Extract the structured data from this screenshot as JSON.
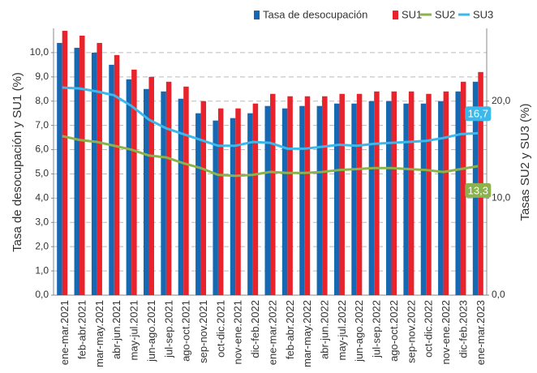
{
  "chart_data": {
    "type": "bar_line",
    "categories": [
      "ene-mar.2021",
      "feb-abr.2021",
      "mar-may.2021",
      "abr-jun.2021",
      "may-jul.2021",
      "jun-ago.2021",
      "jul-sep.2021",
      "ago-oct.2021",
      "sep-nov.2021",
      "oct-dic.2021",
      "nov-ene.2021",
      "dic-feb.2022",
      "ene-mar.2022",
      "feb-abr.2022",
      "mar-may.2022",
      "abr-jun.2022",
      "may-jul.2022",
      "jun-ago.2022",
      "jul-sep.2022",
      "ago-oct.2022",
      "sep-nov.2022",
      "oct-dic.2022",
      "nov-ene.2022",
      "dic-feb.2023",
      "ene-mar.2023"
    ],
    "series": [
      {
        "name": "Tasa de desocupación",
        "color": "#1668b3",
        "kind": "bar",
        "values": [
          10.4,
          10.2,
          10.0,
          9.5,
          8.9,
          8.5,
          8.4,
          8.1,
          7.5,
          7.2,
          7.3,
          7.5,
          7.8,
          7.7,
          7.8,
          7.8,
          7.9,
          7.9,
          8.0,
          8.0,
          7.9,
          7.9,
          8.0,
          8.4,
          8.8
        ]
      },
      {
        "name": "SU1",
        "color": "#e8232b",
        "kind": "bar",
        "values": [
          10.9,
          10.7,
          10.4,
          9.9,
          9.3,
          9.0,
          8.8,
          8.6,
          8.0,
          7.7,
          7.7,
          7.9,
          8.3,
          8.2,
          8.2,
          8.2,
          8.3,
          8.3,
          8.4,
          8.4,
          8.4,
          8.3,
          8.4,
          8.8,
          9.2
        ]
      },
      {
        "name": "SU2",
        "color": "#8bb24c",
        "kind": "line",
        "axis": "y2",
        "values": [
          16.4,
          16.0,
          15.8,
          15.4,
          15.0,
          14.4,
          14.2,
          13.6,
          13.1,
          12.4,
          12.3,
          12.4,
          12.7,
          12.6,
          12.6,
          12.7,
          12.9,
          13.0,
          13.1,
          13.1,
          13.0,
          12.9,
          12.7,
          13.0,
          13.3
        ],
        "value_labels": [
          null,
          null,
          null,
          null,
          null,
          null,
          null,
          null,
          null,
          null,
          null,
          null,
          null,
          null,
          null,
          null,
          null,
          null,
          null,
          null,
          null,
          null,
          null,
          null,
          "13,3"
        ]
      },
      {
        "name": "SU3",
        "color": "#3db8ea",
        "kind": "line",
        "axis": "y2",
        "values": [
          21.4,
          21.3,
          21.0,
          20.6,
          19.5,
          18.1,
          17.2,
          16.6,
          16.0,
          15.4,
          15.4,
          15.8,
          15.7,
          15.1,
          15.1,
          15.3,
          15.5,
          15.4,
          15.6,
          15.7,
          15.8,
          15.9,
          16.2,
          16.6,
          16.7
        ],
        "value_labels": [
          null,
          null,
          null,
          null,
          null,
          null,
          null,
          null,
          null,
          null,
          null,
          null,
          null,
          null,
          null,
          null,
          null,
          null,
          null,
          null,
          null,
          null,
          null,
          null,
          "16,7"
        ]
      }
    ],
    "ylabel": "Tasa de desocupación y SU1 (%)",
    "y2label": "Tasas SU2 y SU3 (%)",
    "ylim": [
      0,
      11
    ],
    "yticks": [
      {
        "value": 0,
        "label": "0,0"
      },
      {
        "value": 1,
        "label": "1,0"
      },
      {
        "value": 2,
        "label": "2,0"
      },
      {
        "value": 3,
        "label": "3,0"
      },
      {
        "value": 4,
        "label": "4,0"
      },
      {
        "value": 5,
        "label": "5,0"
      },
      {
        "value": 6,
        "label": "6,0"
      },
      {
        "value": 7,
        "label": "7,0"
      },
      {
        "value": 8,
        "label": "8,0"
      },
      {
        "value": 9,
        "label": "9,0"
      },
      {
        "value": 10,
        "label": "10,0"
      }
    ],
    "y2lim": [
      0,
      27.5
    ],
    "y2ticks": [
      {
        "value": 0,
        "label": "0,0"
      },
      {
        "value": 10,
        "label": "10,0"
      },
      {
        "value": 20,
        "label": "20,0"
      }
    ],
    "grid": true,
    "legend": "top"
  }
}
